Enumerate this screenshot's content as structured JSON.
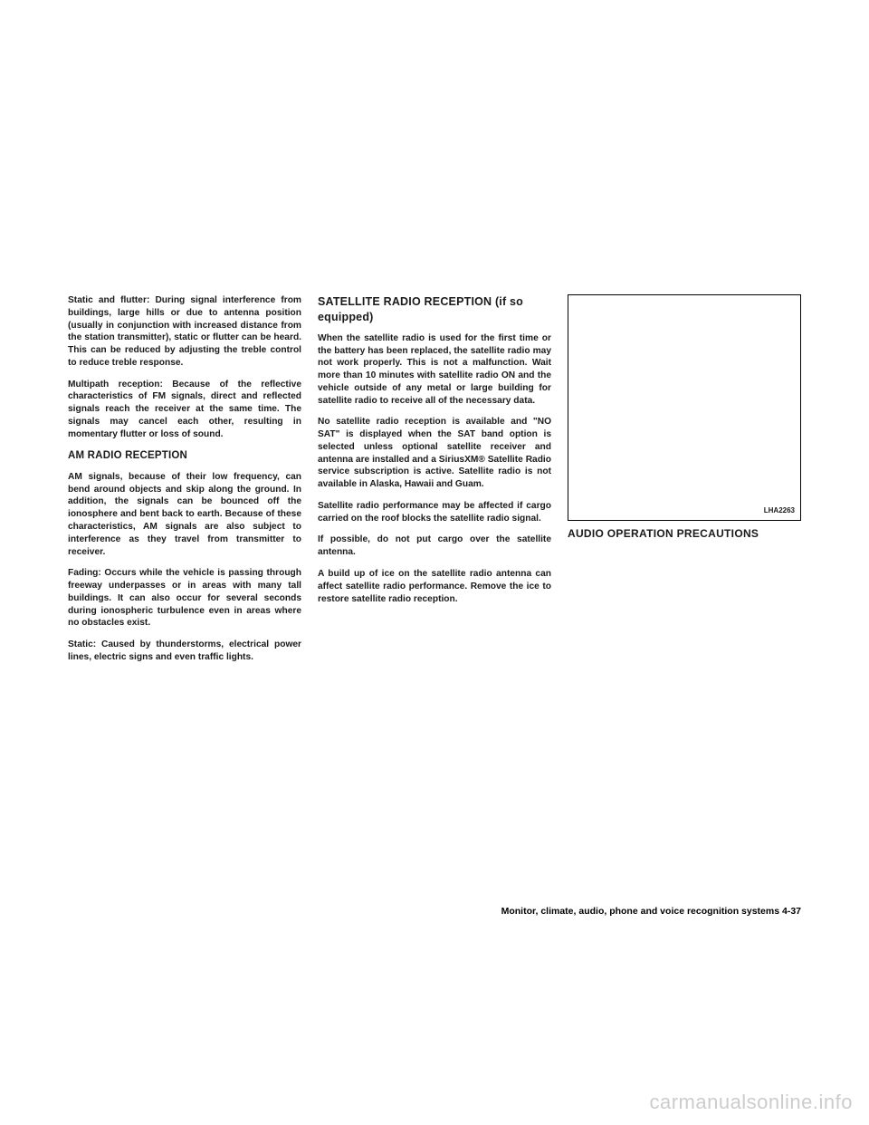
{
  "col1": {
    "p1": "Static and flutter: During signal interference from buildings, large hills or due to antenna position (usually in conjunction with increased distance from the station transmitter), static or flutter can be heard. This can be reduced by adjusting the treble control to reduce treble response.",
    "p2": "Multipath reception: Because of the reflective characteristics of FM signals, direct and reflected signals reach the receiver at the same time. The signals may cancel each other, resulting in momentary flutter or loss of sound.",
    "h3": "AM RADIO RECEPTION",
    "p3": "AM signals, because of their low frequency, can bend around objects and skip along the ground. In addition, the signals can be bounced off the ionosphere and bent back to earth. Because of these characteristics, AM signals are also subject to interference as they travel from transmitter to receiver.",
    "p4": "Fading: Occurs while the vehicle is passing through freeway underpasses or in areas with many tall buildings. It can also occur for several seconds during ionospheric turbulence even in areas where no obstacles exist.",
    "p5": "Static: Caused by thunderstorms, electrical power lines, electric signs and even traffic lights."
  },
  "col2": {
    "h2": "SATELLITE RADIO RECEPTION (if so equipped)",
    "p1": "When the satellite radio is used for the first time or the battery has been replaced, the satellite radio may not work properly. This is not a malfunction. Wait more than 10 minutes with satellite radio ON and the vehicle outside of any metal or large building for satellite radio to receive all of the necessary data.",
    "p2": "No satellite radio reception is available and \"NO SAT\" is displayed when the SAT band option is selected unless optional satellite receiver and antenna are installed and a SiriusXM® Satellite Radio service subscription is active. Satellite radio is not available in Alaska, Hawaii and Guam.",
    "p3": "Satellite radio performance may be affected if cargo carried on the roof blocks the satellite radio signal.",
    "p4": "If possible, do not put cargo over the satellite antenna.",
    "p5": "A build up of ice on the satellite radio antenna can affect satellite radio performance. Remove the ice to restore satellite radio reception."
  },
  "col3": {
    "figLabel": "LHA2263",
    "caption": "AUDIO OPERATION PRECAUTIONS"
  },
  "footer": "Monitor, climate, audio, phone and voice recognition systems    4-37",
  "watermark": "carmanualsonline.info"
}
